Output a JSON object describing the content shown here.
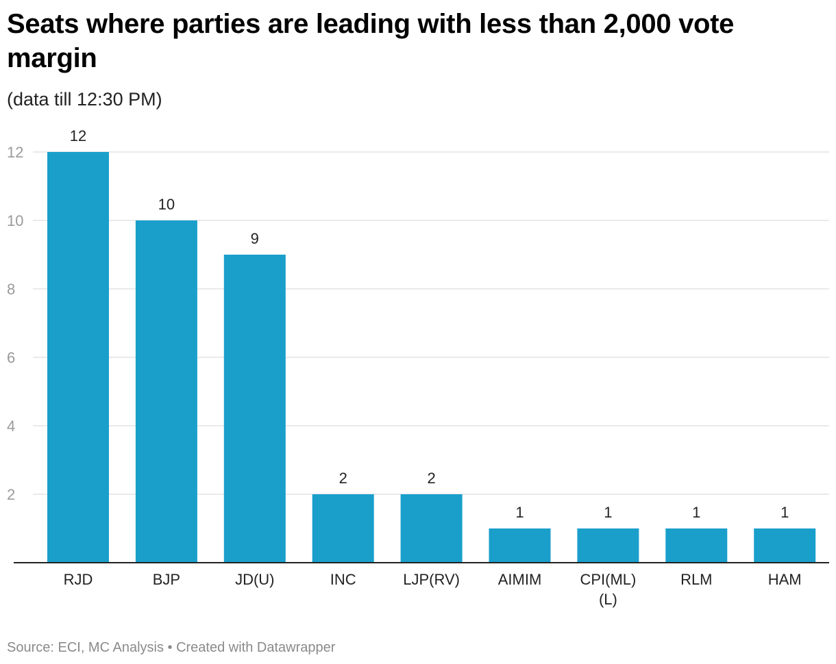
{
  "header": {
    "title": "Seats where parties are leading with less than 2,000 vote margin",
    "subtitle": "(data till 12:30 PM)"
  },
  "footer": {
    "source_text": "Source: ECI, MC Analysis • Created with Datawrapper"
  },
  "colors": {
    "bar": "#1a9fcb",
    "gridline": "#e4e4e4",
    "axis": "#222222",
    "tick_text": "#9a9a9a"
  },
  "chart_data": {
    "type": "bar",
    "title": "Seats where parties are leading with less than 2,000 vote margin",
    "subtitle": "(data till 12:30 PM)",
    "categories": [
      "RJD",
      "BJP",
      "JD(U)",
      "INC",
      "LJP(RV)",
      "AIMIM",
      "CPI(ML)(L)",
      "RLM",
      "HAM"
    ],
    "category_label_lines": [
      [
        "RJD"
      ],
      [
        "BJP"
      ],
      [
        "JD(U)"
      ],
      [
        "INC"
      ],
      [
        "LJP(RV)"
      ],
      [
        "AIMIM"
      ],
      [
        "CPI(ML)",
        "(L)"
      ],
      [
        "RLM"
      ],
      [
        "HAM"
      ]
    ],
    "values": [
      12,
      10,
      9,
      2,
      2,
      1,
      1,
      1,
      1
    ],
    "yticks": [
      2,
      4,
      6,
      8,
      10,
      12
    ],
    "ylim": [
      0,
      12
    ],
    "xlabel": "",
    "ylabel": "",
    "grid": true,
    "legend": "none"
  }
}
